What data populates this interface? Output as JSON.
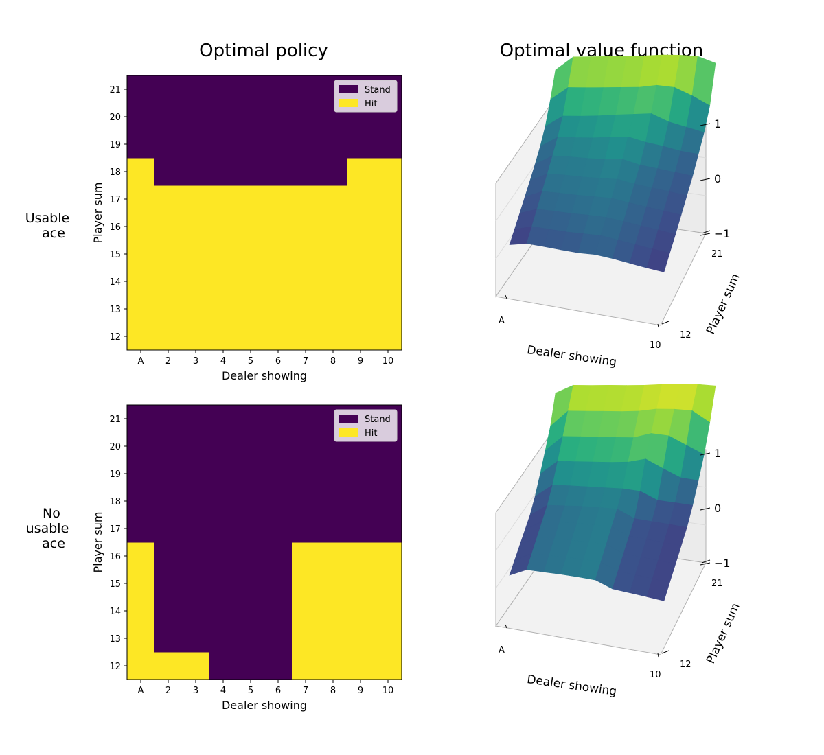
{
  "figure": {
    "titles": [
      "Optimal policy",
      "Optimal value function"
    ],
    "row_labels": [
      [
        "Usable",
        "ace"
      ],
      [
        "No",
        "usable",
        "ace"
      ]
    ]
  },
  "chart_data": [
    {
      "type": "heatmap",
      "title": "Optimal policy",
      "row_label": "Usable ace",
      "xlabel": "Dealer showing",
      "ylabel": "Player sum",
      "x": [
        "A",
        "2",
        "3",
        "4",
        "5",
        "6",
        "7",
        "8",
        "9",
        "10"
      ],
      "y": [
        12,
        13,
        14,
        15,
        16,
        17,
        18,
        19,
        20,
        21
      ],
      "legend": [
        {
          "label": "Stand",
          "color": "#440154"
        },
        {
          "label": "Hit",
          "color": "#fde725"
        }
      ],
      "legend_position": "top-right",
      "stand_from": [
        19,
        18,
        18,
        18,
        18,
        18,
        18,
        18,
        19,
        19
      ]
    },
    {
      "type": "surface",
      "title": "Optimal value function",
      "row_label": "Usable ace",
      "xlabel": "Dealer showing",
      "ylabel": "Player sum",
      "x_ticks": [
        "A",
        "10"
      ],
      "y_ticks": [
        "12",
        "21"
      ],
      "z_ticks": [
        "1",
        "0",
        "−1"
      ],
      "zlim": [
        -1,
        1
      ],
      "values": [
        [
          -0.72,
          -0.48,
          -0.47,
          -0.47,
          -0.46,
          -0.38,
          -0.42,
          -0.5,
          -0.58,
          -0.64
        ],
        [
          -0.7,
          -0.42,
          -0.41,
          -0.4,
          -0.35,
          -0.3,
          -0.38,
          -0.46,
          -0.54,
          -0.6
        ],
        [
          -0.66,
          -0.35,
          -0.33,
          -0.32,
          -0.28,
          -0.26,
          -0.34,
          -0.42,
          -0.5,
          -0.58
        ],
        [
          -0.62,
          -0.28,
          -0.26,
          -0.25,
          -0.22,
          -0.2,
          -0.3,
          -0.38,
          -0.46,
          -0.54
        ],
        [
          -0.58,
          -0.22,
          -0.2,
          -0.2,
          -0.18,
          -0.14,
          -0.26,
          -0.34,
          -0.42,
          -0.5
        ],
        [
          -0.54,
          -0.16,
          -0.14,
          -0.14,
          -0.12,
          -0.06,
          -0.22,
          -0.3,
          -0.38,
          -0.46
        ],
        [
          -0.45,
          -0.08,
          -0.05,
          -0.02,
          0.05,
          0.1,
          -0.05,
          -0.15,
          -0.28,
          -0.35
        ],
        [
          -0.3,
          0.08,
          0.1,
          0.14,
          0.2,
          0.25,
          0.3,
          0.05,
          -0.1,
          -0.25
        ],
        [
          0.05,
          0.45,
          0.46,
          0.48,
          0.5,
          0.52,
          0.6,
          0.55,
          0.3,
          0.0
        ],
        [
          0.45,
          0.85,
          0.86,
          0.87,
          0.88,
          0.9,
          0.93,
          0.93,
          0.9,
          0.7
        ]
      ]
    },
    {
      "type": "heatmap",
      "title": "",
      "row_label": "No usable ace",
      "xlabel": "Dealer showing",
      "ylabel": "Player sum",
      "x": [
        "A",
        "2",
        "3",
        "4",
        "5",
        "6",
        "7",
        "8",
        "9",
        "10"
      ],
      "y": [
        12,
        13,
        14,
        15,
        16,
        17,
        18,
        19,
        20,
        21
      ],
      "legend": [
        {
          "label": "Stand",
          "color": "#440154"
        },
        {
          "label": "Hit",
          "color": "#fde725"
        }
      ],
      "legend_position": "top-right",
      "stand_from": [
        17,
        13,
        13,
        12,
        12,
        12,
        17,
        17,
        17,
        17
      ]
    },
    {
      "type": "surface",
      "title": "",
      "row_label": "No usable ace",
      "xlabel": "Dealer showing",
      "ylabel": "Player sum",
      "x_ticks": [
        "A",
        "10"
      ],
      "y_ticks": [
        "12",
        "21"
      ],
      "z_ticks": [
        "1",
        "0",
        "−1"
      ],
      "zlim": [
        -1,
        1
      ],
      "values": [
        [
          -0.78,
          -0.3,
          -0.25,
          -0.2,
          -0.17,
          -0.16,
          -0.47,
          -0.51,
          -0.55,
          -0.6
        ],
        [
          -0.78,
          -0.3,
          -0.25,
          -0.2,
          -0.17,
          -0.16,
          -0.47,
          -0.51,
          -0.55,
          -0.6
        ],
        [
          -0.78,
          -0.3,
          -0.25,
          -0.2,
          -0.17,
          -0.16,
          -0.47,
          -0.51,
          -0.55,
          -0.6
        ],
        [
          -0.78,
          -0.3,
          -0.25,
          -0.2,
          -0.17,
          -0.16,
          -0.47,
          -0.51,
          -0.55,
          -0.6
        ],
        [
          -0.78,
          -0.3,
          -0.25,
          -0.2,
          -0.17,
          -0.16,
          -0.47,
          -0.51,
          -0.55,
          -0.6
        ],
        [
          -0.64,
          -0.15,
          -0.12,
          -0.1,
          -0.08,
          -0.06,
          -0.1,
          -0.38,
          -0.42,
          -0.46
        ],
        [
          -0.38,
          0.12,
          0.14,
          0.17,
          0.2,
          0.25,
          0.4,
          0.1,
          -0.18,
          -0.24
        ],
        [
          -0.12,
          0.38,
          0.4,
          0.42,
          0.43,
          0.45,
          0.62,
          0.57,
          0.28,
          0.0
        ],
        [
          0.14,
          0.64,
          0.65,
          0.66,
          0.67,
          0.7,
          0.78,
          0.79,
          0.76,
          0.4
        ],
        [
          0.64,
          0.88,
          0.88,
          0.89,
          0.89,
          0.9,
          0.93,
          0.93,
          0.94,
          0.9
        ]
      ]
    }
  ]
}
